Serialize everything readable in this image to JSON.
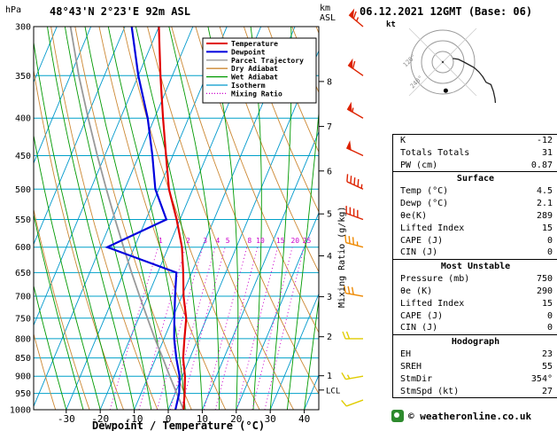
{
  "header": {
    "station": "48°43'N 2°23'E 92m ASL",
    "run": "06.12.2021 12GMT (Base: 06)"
  },
  "axis": {
    "pressure_unit": "hPa",
    "km_unit_1": "km",
    "km_unit_2": "ASL",
    "x_label": "Dewpoint / Temperature (°C)",
    "mixing_ratio_axis": "Mixing Ratio (g/kg)",
    "lcl": "LCL",
    "pressure_ticks": [
      300,
      350,
      400,
      450,
      500,
      550,
      600,
      650,
      700,
      750,
      800,
      850,
      900,
      950,
      1000
    ],
    "x_ticks": [
      -30,
      -20,
      -10,
      0,
      10,
      20,
      30,
      40
    ],
    "km_ticks": [
      8,
      7,
      6,
      5,
      4,
      3,
      2,
      1
    ]
  },
  "legend": {
    "items": [
      {
        "label": "Temperature",
        "color": "#e00000",
        "style": "solid"
      },
      {
        "label": "Dewpoint",
        "color": "#0000dd",
        "style": "solid"
      },
      {
        "label": "Parcel Trajectory",
        "color": "#999999",
        "style": "solid"
      },
      {
        "label": "Dry Adiabat",
        "color": "#cc8833",
        "style": "solid"
      },
      {
        "label": "Wet Adiabat",
        "color": "#009900",
        "style": "solid"
      },
      {
        "label": "Isotherm",
        "color": "#0099cc",
        "style": "solid"
      },
      {
        "label": "Mixing Ratio",
        "color": "#cc00cc",
        "style": "dotted"
      }
    ]
  },
  "hodograph_panel": {
    "unit": "kt",
    "azimuth_labels": [
      "120°",
      "240°"
    ]
  },
  "indices": {
    "rows_top": [
      {
        "label": "K",
        "value": "-12"
      },
      {
        "label": "Totals Totals",
        "value": "31"
      },
      {
        "label": "PW (cm)",
        "value": "0.87"
      }
    ],
    "sections": [
      {
        "title": "Surface",
        "rows": [
          {
            "label": "Temp (°C)",
            "value": "4.5"
          },
          {
            "label": "Dewp (°C)",
            "value": "2.1"
          },
          {
            "label": "θe(K)",
            "value": "289"
          },
          {
            "label": "Lifted Index",
            "value": "15"
          },
          {
            "label": "CAPE (J)",
            "value": "0"
          },
          {
            "label": "CIN (J)",
            "value": "0"
          }
        ]
      },
      {
        "title": "Most Unstable",
        "rows": [
          {
            "label": "Pressure (mb)",
            "value": "750"
          },
          {
            "label": "θe (K)",
            "value": "290"
          },
          {
            "label": "Lifted Index",
            "value": "15"
          },
          {
            "label": "CAPE (J)",
            "value": "0"
          },
          {
            "label": "CIN (J)",
            "value": "0"
          }
        ]
      },
      {
        "title": "Hodograph",
        "rows": [
          {
            "label": "EH",
            "value": "23"
          },
          {
            "label": "SREH",
            "value": "55"
          },
          {
            "label": "StmDir",
            "value": "354°"
          },
          {
            "label": "StmSpd (kt)",
            "value": "27"
          }
        ]
      }
    ]
  },
  "footer": {
    "copyright": "© weatheronline.co.uk"
  },
  "chart_data": {
    "type": "line",
    "title": "Skew-T log-P sounding, 48°43'N 2°23'E 92m ASL, 06.12.2021 12GMT",
    "x_axis": {
      "label": "Dewpoint / Temperature (°C)",
      "range": [
        -35,
        45
      ],
      "skewed_isotherms": true
    },
    "y_axis": {
      "label": "hPa",
      "scale": "log",
      "range": [
        1000,
        300
      ]
    },
    "pressure_hpa": [
      1000,
      950,
      900,
      850,
      800,
      750,
      700,
      650,
      600,
      550,
      500,
      450,
      400,
      350,
      300
    ],
    "series": [
      {
        "name": "Temperature (°C)",
        "color": "#e00000",
        "values": [
          4.5,
          2.8,
          0.8,
          -2,
          -4,
          -6,
          -9.5,
          -12.5,
          -16,
          -21,
          -27,
          -32,
          -37.5,
          -43.5,
          -50
        ]
      },
      {
        "name": "Dewpoint (°C)",
        "color": "#0000dd",
        "values": [
          2.1,
          1.2,
          -0.8,
          -4,
          -7,
          -9.5,
          -12,
          -14.5,
          -38,
          -24,
          -31,
          -36,
          -42,
          -50,
          -58
        ]
      },
      {
        "name": "Parcel Trajectory (°C)",
        "color": "#999999",
        "values": [
          4.5,
          0.5,
          -3.7,
          -8,
          -12.7,
          -17.4,
          -22.4,
          -27.7,
          -33.2,
          -39.1,
          -45.4,
          -52.2,
          -59.5,
          -67.5,
          -76
        ]
      }
    ],
    "mixing_ratio_lines_gkg": [
      1,
      2,
      3,
      4,
      5,
      8,
      10,
      15,
      20,
      25
    ],
    "isotherm_step_c": 10,
    "dry_adiabat_step_k": 10,
    "wet_adiabat_start_c": [
      -30,
      -25,
      -20,
      -15,
      -10,
      -5,
      0,
      5,
      10,
      15,
      20,
      25,
      30,
      35,
      40
    ],
    "lcl_pressure_hpa": 940,
    "km_tick_pressures_hpa": [
      356.5,
      410.6,
      472.2,
      540.5,
      616.6,
      701.2,
      795.0,
      898.7
    ],
    "storm": {
      "dir_deg": 354,
      "speed_kt": 27
    },
    "winds": [
      {
        "p": 300,
        "dir_deg": 310,
        "speed_kt": 65,
        "color": "#dd2200"
      },
      {
        "p": 350,
        "dir_deg": 305,
        "speed_kt": 60,
        "color": "#dd2200"
      },
      {
        "p": 400,
        "dir_deg": 300,
        "speed_kt": 55,
        "color": "#dd2200"
      },
      {
        "p": 450,
        "dir_deg": 295,
        "speed_kt": 50,
        "color": "#dd2200"
      },
      {
        "p": 500,
        "dir_deg": 295,
        "speed_kt": 45,
        "color": "#dd2200"
      },
      {
        "p": 550,
        "dir_deg": 290,
        "speed_kt": 40,
        "color": "#dd2200"
      },
      {
        "p": 600,
        "dir_deg": 285,
        "speed_kt": 35,
        "color": "#ee8800"
      },
      {
        "p": 700,
        "dir_deg": 280,
        "speed_kt": 30,
        "color": "#ee8800"
      },
      {
        "p": 800,
        "dir_deg": 270,
        "speed_kt": 20,
        "color": "#e0cc00"
      },
      {
        "p": 900,
        "dir_deg": 260,
        "speed_kt": 15,
        "color": "#e0cc00"
      },
      {
        "p": 970,
        "dir_deg": 250,
        "speed_kt": 10,
        "color": "#e0cc00"
      }
    ]
  }
}
